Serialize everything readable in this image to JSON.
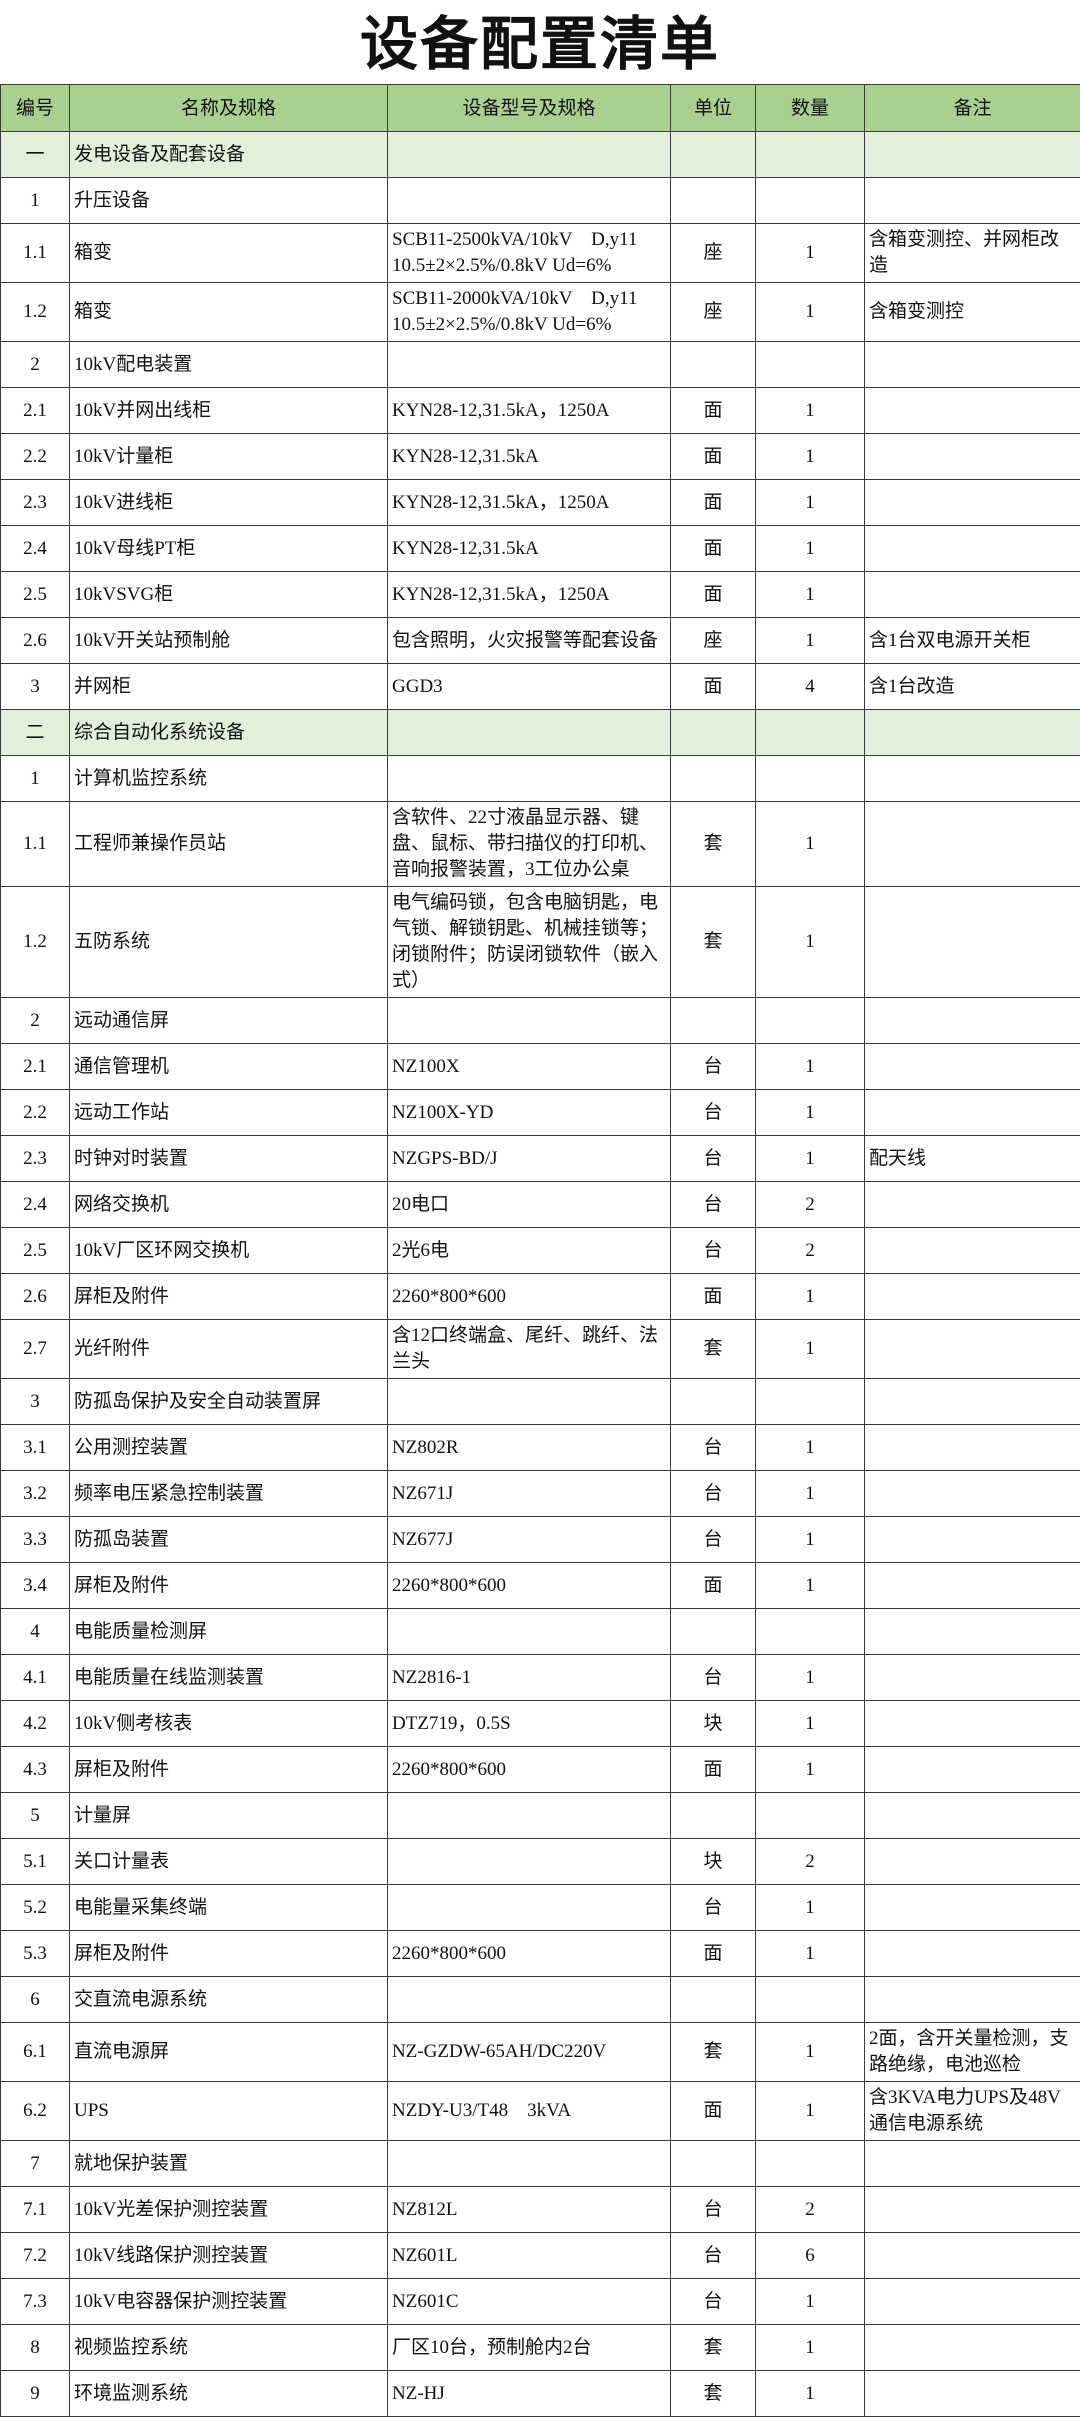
{
  "title": "设备配置清单",
  "columns": [
    "编号",
    "名称及规格",
    "设备型号及规格",
    "单位",
    "数量",
    "备注"
  ],
  "rows": [
    {
      "no": "一",
      "name": "发电设备及配套设备",
      "model": "",
      "unit": "",
      "qty": "",
      "note": "",
      "section": true
    },
    {
      "no": "1",
      "name": "升压设备",
      "model": "",
      "unit": "",
      "qty": "",
      "note": ""
    },
    {
      "no": "1.1",
      "name": "箱变",
      "model": "SCB11-2500kVA/10kV　D,y11 10.5±2×2.5%/0.8kV Ud=6%",
      "unit": "座",
      "qty": "1",
      "note": "含箱变测控、并网柜改造"
    },
    {
      "no": "1.2",
      "name": "箱变",
      "model": "SCB11-2000kVA/10kV　D,y11 10.5±2×2.5%/0.8kV Ud=6%",
      "unit": "座",
      "qty": "1",
      "note": "含箱变测控"
    },
    {
      "no": "2",
      "name": "10kV配电装置",
      "model": "",
      "unit": "",
      "qty": "",
      "note": ""
    },
    {
      "no": "2.1",
      "name": "10kV并网出线柜",
      "model": "KYN28-12,31.5kA，1250A",
      "unit": "面",
      "qty": "1",
      "note": ""
    },
    {
      "no": "2.2",
      "name": "10kV计量柜",
      "model": "KYN28-12,31.5kA",
      "unit": "面",
      "qty": "1",
      "note": ""
    },
    {
      "no": "2.3",
      "name": "10kV进线柜",
      "model": "KYN28-12,31.5kA，1250A",
      "unit": "面",
      "qty": "1",
      "note": ""
    },
    {
      "no": "2.4",
      "name": "10kV母线PT柜",
      "model": "KYN28-12,31.5kA",
      "unit": "面",
      "qty": "1",
      "note": ""
    },
    {
      "no": "2.5",
      "name": "10kVSVG柜",
      "model": "KYN28-12,31.5kA，1250A",
      "unit": "面",
      "qty": "1",
      "note": ""
    },
    {
      "no": "2.6",
      "name": "10kV开关站预制舱",
      "model": "包含照明，火灾报警等配套设备",
      "unit": "座",
      "qty": "1",
      "note": "含1台双电源开关柜"
    },
    {
      "no": "3",
      "name": "并网柜",
      "model": "GGD3",
      "unit": "面",
      "qty": "4",
      "note": "含1台改造"
    },
    {
      "no": "二",
      "name": "综合自动化系统设备",
      "model": "",
      "unit": "",
      "qty": "",
      "note": "",
      "section": true
    },
    {
      "no": "1",
      "name": "计算机监控系统",
      "model": "",
      "unit": "",
      "qty": "",
      "note": ""
    },
    {
      "no": "1.1",
      "name": "工程师兼操作员站",
      "model": "含软件、22寸液晶显示器、键盘、鼠标、带扫描仪的打印机、音响报警装置，3工位办公桌",
      "unit": "套",
      "qty": "1",
      "note": ""
    },
    {
      "no": "1.2",
      "name": "五防系统",
      "model": "电气编码锁，包含电脑钥匙，电气锁、解锁钥匙、机械挂锁等；闭锁附件；防误闭锁软件（嵌入式）",
      "unit": "套",
      "qty": "1",
      "note": ""
    },
    {
      "no": "2",
      "name": "远动通信屏",
      "model": "",
      "unit": "",
      "qty": "",
      "note": ""
    },
    {
      "no": "2.1",
      "name": "通信管理机",
      "model": "NZ100X",
      "unit": "台",
      "qty": "1",
      "note": ""
    },
    {
      "no": "2.2",
      "name": "远动工作站",
      "model": "NZ100X-YD",
      "unit": "台",
      "qty": "1",
      "note": ""
    },
    {
      "no": "2.3",
      "name": "时钟对时装置",
      "model": "NZGPS-BD/J",
      "unit": "台",
      "qty": "1",
      "note": "配天线"
    },
    {
      "no": "2.4",
      "name": "网络交换机",
      "model": "20电口",
      "unit": "台",
      "qty": "2",
      "note": ""
    },
    {
      "no": "2.5",
      "name": "10kV厂区环网交换机",
      "model": "2光6电",
      "unit": "台",
      "qty": "2",
      "note": ""
    },
    {
      "no": "2.6",
      "name": "屏柜及附件",
      "model": "2260*800*600",
      "unit": "面",
      "qty": "1",
      "note": ""
    },
    {
      "no": "2.7",
      "name": "光纤附件",
      "model": "含12口终端盒、尾纤、跳纤、法兰头",
      "unit": "套",
      "qty": "1",
      "note": ""
    },
    {
      "no": "3",
      "name": "防孤岛保护及安全自动装置屏",
      "model": "",
      "unit": "",
      "qty": "",
      "note": ""
    },
    {
      "no": "3.1",
      "name": "公用测控装置",
      "model": "NZ802R",
      "unit": "台",
      "qty": "1",
      "note": ""
    },
    {
      "no": "3.2",
      "name": "频率电压紧急控制装置",
      "model": "NZ671J",
      "unit": "台",
      "qty": "1",
      "note": ""
    },
    {
      "no": "3.3",
      "name": "防孤岛装置",
      "model": "NZ677J",
      "unit": "台",
      "qty": "1",
      "note": ""
    },
    {
      "no": "3.4",
      "name": "屏柜及附件",
      "model": "2260*800*600",
      "unit": "面",
      "qty": "1",
      "note": ""
    },
    {
      "no": "4",
      "name": "电能质量检测屏",
      "model": "",
      "unit": "",
      "qty": "",
      "note": ""
    },
    {
      "no": "4.1",
      "name": "电能质量在线监测装置",
      "model": "NZ2816-1",
      "unit": "台",
      "qty": "1",
      "note": ""
    },
    {
      "no": "4.2",
      "name": "10kV侧考核表",
      "model": "DTZ719，0.5S",
      "unit": "块",
      "qty": "1",
      "note": ""
    },
    {
      "no": "4.3",
      "name": "屏柜及附件",
      "model": "2260*800*600",
      "unit": "面",
      "qty": "1",
      "note": ""
    },
    {
      "no": "5",
      "name": "计量屏",
      "model": "",
      "unit": "",
      "qty": "",
      "note": ""
    },
    {
      "no": "5.1",
      "name": "关口计量表",
      "model": "",
      "unit": "块",
      "qty": "2",
      "note": ""
    },
    {
      "no": "5.2",
      "name": "电能量采集终端",
      "model": "",
      "unit": "台",
      "qty": "1",
      "note": ""
    },
    {
      "no": "5.3",
      "name": "屏柜及附件",
      "model": "2260*800*600",
      "unit": "面",
      "qty": "1",
      "note": ""
    },
    {
      "no": "6",
      "name": "交直流电源系统",
      "model": "",
      "unit": "",
      "qty": "",
      "note": ""
    },
    {
      "no": "6.1",
      "name": "直流电源屏",
      "model": "NZ-GZDW-65AH/DC220V",
      "unit": "套",
      "qty": "1",
      "note": "2面，含开关量检测，支路绝缘，电池巡检"
    },
    {
      "no": "6.2",
      "name": "UPS",
      "model": "NZDY-U3/T48　3kVA",
      "unit": "面",
      "qty": "1",
      "note": "含3KVA电力UPS及48V通信电源系统"
    },
    {
      "no": "7",
      "name": "就地保护装置",
      "model": "",
      "unit": "",
      "qty": "",
      "note": ""
    },
    {
      "no": "7.1",
      "name": "10kV光差保护测控装置",
      "model": "NZ812L",
      "unit": "台",
      "qty": "2",
      "note": ""
    },
    {
      "no": "7.2",
      "name": "10kV线路保护测控装置",
      "model": "NZ601L",
      "unit": "台",
      "qty": "6",
      "note": ""
    },
    {
      "no": "7.3",
      "name": "10kV电容器保护测控装置",
      "model": "NZ601C",
      "unit": "台",
      "qty": "1",
      "note": ""
    },
    {
      "no": "8",
      "name": "视频监控系统",
      "model": "厂区10台，预制舱内2台",
      "unit": "套",
      "qty": "1",
      "note": ""
    },
    {
      "no": "9",
      "name": "环境监测系统",
      "model": "NZ-HJ",
      "unit": "套",
      "qty": "1",
      "note": ""
    }
  ]
}
